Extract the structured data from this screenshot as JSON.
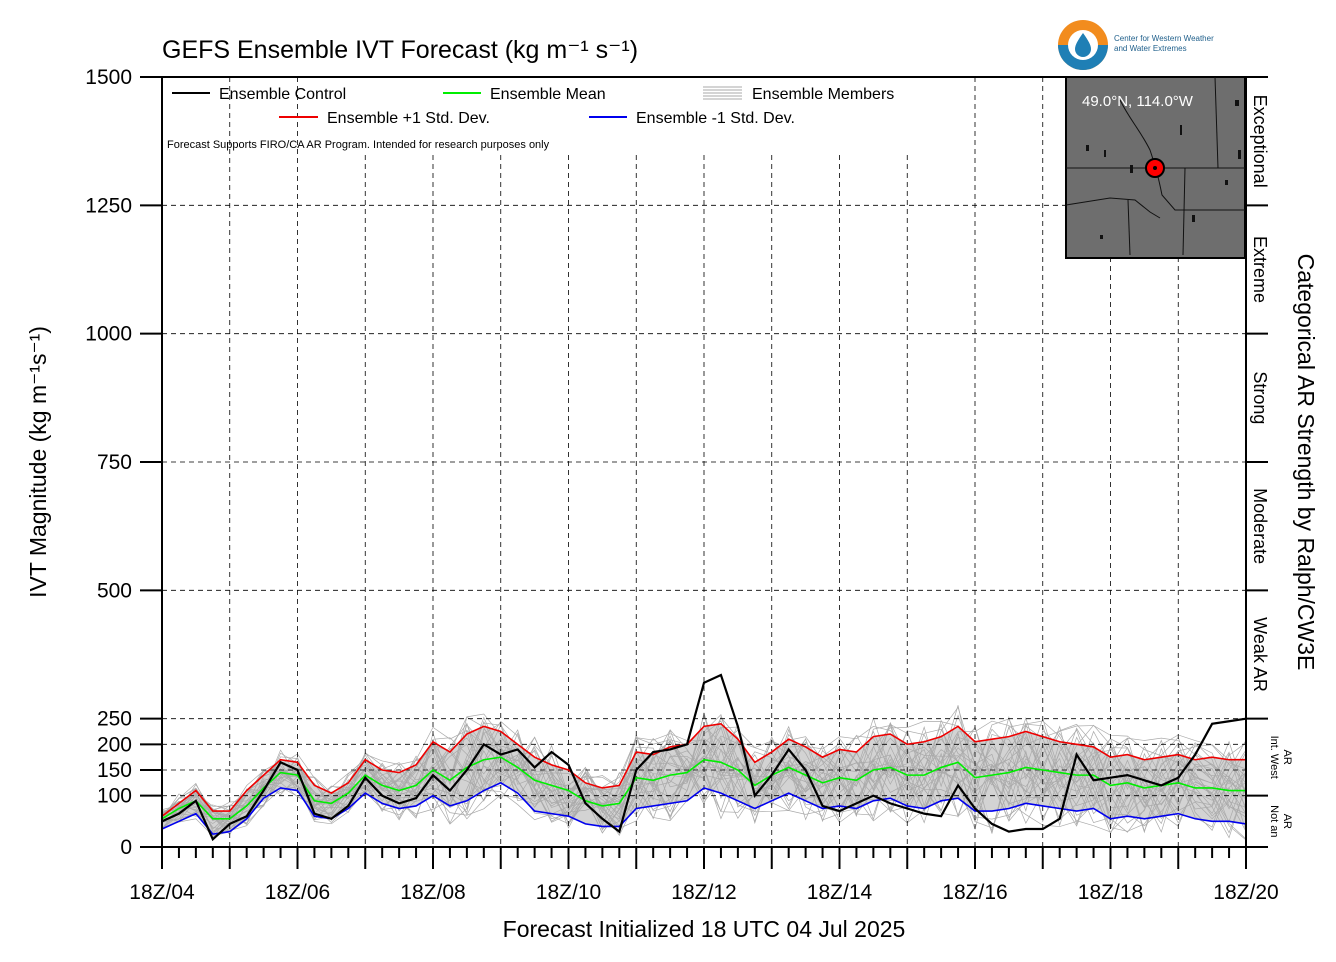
{
  "chart_data": {
    "type": "line",
    "title": "GEFS Ensemble IVT Forecast (kg m⁻¹ s⁻¹)",
    "xlabel": "Forecast Initialized 18 UTC 04 Jul 2025",
    "ylabel": "IVT Magnitude (kg m⁻¹s⁻¹)",
    "right_axis_label": "Categorical AR Strength by Ralph/CW3E",
    "ylim": [
      0,
      1500
    ],
    "xlim_hours": [
      0,
      384
    ],
    "x_ticks": [
      "18Z/04",
      "18Z/06",
      "18Z/08",
      "18Z/10",
      "18Z/12",
      "18Z/14",
      "18Z/16",
      "18Z/18",
      "18Z/20"
    ],
    "y_ticks": [
      0,
      100,
      150,
      200,
      250,
      500,
      750,
      1000,
      1250,
      1500
    ],
    "categories": [
      {
        "label": "Not an AR",
        "range": [
          0,
          100
        ]
      },
      {
        "label": "Int. West AR",
        "range": [
          100,
          250
        ]
      },
      {
        "label": "Weak AR",
        "range": [
          250,
          500
        ]
      },
      {
        "label": "Moderate",
        "range": [
          500,
          750
        ]
      },
      {
        "label": "Strong",
        "range": [
          750,
          1000
        ]
      },
      {
        "label": "Extreme",
        "range": [
          1000,
          1250
        ]
      },
      {
        "label": "Exceptional",
        "range": [
          1250,
          1500
        ]
      }
    ],
    "legend": {
      "control": "Ensemble Control",
      "mean": "Ensemble Mean",
      "members": "Ensemble Members",
      "plus_sd": "Ensemble +1 Std. Dev.",
      "minus_sd": "Ensemble -1 Std. Dev."
    },
    "note": "Forecast Supports FIRO/CA AR Program. Intended for research purposes only",
    "location": "49.0°N, 114.0°W",
    "logo_text": [
      "Center for Western Weather",
      "and Water Extremes"
    ],
    "colors": {
      "control": "#000000",
      "mean": "#00ee00",
      "plus_sd": "#ee0000",
      "minus_sd": "#0000ee",
      "members": "#aaaaaa",
      "band": "#d3d3d3",
      "map_bg": "#6e6e6e"
    },
    "series": [
      {
        "name": "Ensemble Control",
        "x": [
          0,
          6,
          12,
          18,
          24,
          30,
          36,
          42,
          48,
          54,
          60,
          66,
          72,
          78,
          84,
          90,
          96,
          102,
          108,
          114,
          120,
          126,
          132,
          138,
          144,
          150,
          156,
          162,
          168,
          174,
          180,
          186,
          192,
          198,
          204,
          210,
          216,
          222,
          228,
          234,
          240,
          246,
          252,
          258,
          264,
          270,
          276,
          282,
          288,
          294,
          300,
          306,
          312,
          318,
          324,
          330,
          336,
          342,
          348,
          354,
          360,
          366,
          372,
          378,
          384
        ],
        "values": [
          50,
          65,
          90,
          15,
          45,
          60,
          110,
          165,
          150,
          65,
          55,
          80,
          135,
          100,
          85,
          95,
          140,
          110,
          150,
          200,
          180,
          190,
          155,
          185,
          160,
          85,
          55,
          30,
          150,
          185,
          190,
          200,
          320,
          335,
          235,
          100,
          140,
          190,
          150,
          80,
          70,
          85,
          100,
          85,
          75,
          65,
          60,
          120,
          75,
          45,
          30,
          35,
          35,
          55,
          180,
          130,
          135,
          140,
          130,
          120,
          135,
          180,
          240,
          245,
          250
        ],
        "_note_unused": ""
      },
      {
        "name": "Ensemble Mean",
        "x": [
          0,
          6,
          12,
          18,
          24,
          30,
          36,
          42,
          48,
          54,
          60,
          66,
          72,
          78,
          84,
          90,
          96,
          102,
          108,
          114,
          120,
          126,
          132,
          138,
          144,
          150,
          156,
          162,
          168,
          174,
          180,
          186,
          192,
          198,
          204,
          210,
          216,
          222,
          228,
          234,
          240,
          246,
          252,
          258,
          264,
          270,
          276,
          282,
          288,
          294,
          300,
          306,
          312,
          318,
          324,
          330,
          336,
          342,
          348,
          354,
          360,
          366,
          372,
          378,
          384
        ],
        "values": [
          55,
          75,
          90,
          55,
          55,
          80,
          115,
          145,
          140,
          90,
          85,
          105,
          140,
          120,
          110,
          120,
          150,
          130,
          155,
          170,
          175,
          155,
          130,
          120,
          110,
          90,
          80,
          85,
          135,
          130,
          140,
          145,
          170,
          165,
          150,
          120,
          140,
          155,
          140,
          125,
          135,
          130,
          150,
          155,
          140,
          140,
          155,
          165,
          135,
          140,
          145,
          155,
          150,
          145,
          140,
          140,
          120,
          125,
          115,
          120,
          125,
          115,
          115,
          110,
          110
        ]
      },
      {
        "name": "Ensemble +1 Std. Dev.",
        "x": [
          0,
          6,
          12,
          18,
          24,
          30,
          36,
          42,
          48,
          54,
          60,
          66,
          72,
          78,
          84,
          90,
          96,
          102,
          108,
          114,
          120,
          126,
          132,
          138,
          144,
          150,
          156,
          162,
          168,
          174,
          180,
          186,
          192,
          198,
          204,
          210,
          216,
          222,
          228,
          234,
          240,
          246,
          252,
          258,
          264,
          270,
          276,
          282,
          288,
          294,
          300,
          306,
          312,
          318,
          324,
          330,
          336,
          342,
          348,
          354,
          360,
          366,
          372,
          378,
          384
        ],
        "values": [
          60,
          85,
          110,
          70,
          70,
          110,
          140,
          170,
          165,
          120,
          105,
          125,
          170,
          150,
          145,
          160,
          205,
          185,
          220,
          235,
          225,
          200,
          175,
          160,
          150,
          125,
          115,
          120,
          185,
          180,
          195,
          200,
          235,
          240,
          210,
          165,
          185,
          210,
          195,
          175,
          190,
          185,
          215,
          220,
          200,
          205,
          215,
          235,
          205,
          210,
          215,
          225,
          215,
          205,
          200,
          195,
          175,
          180,
          170,
          175,
          180,
          170,
          175,
          170,
          170
        ]
      },
      {
        "name": "Ensemble -1 Std. Dev.",
        "x": [
          0,
          6,
          12,
          18,
          24,
          30,
          36,
          42,
          48,
          54,
          60,
          66,
          72,
          78,
          84,
          90,
          96,
          102,
          108,
          114,
          120,
          126,
          132,
          138,
          144,
          150,
          156,
          162,
          168,
          174,
          180,
          186,
          192,
          198,
          204,
          210,
          216,
          222,
          228,
          234,
          240,
          246,
          252,
          258,
          264,
          270,
          276,
          282,
          288,
          294,
          300,
          306,
          312,
          318,
          324,
          330,
          336,
          342,
          348,
          354,
          360,
          366,
          372,
          378,
          384
        ],
        "values": [
          35,
          50,
          65,
          25,
          30,
          55,
          95,
          115,
          110,
          60,
          55,
          75,
          105,
          85,
          75,
          80,
          100,
          80,
          90,
          110,
          125,
          105,
          70,
          65,
          60,
          45,
          40,
          40,
          75,
          80,
          85,
          90,
          115,
          105,
          90,
          75,
          90,
          105,
          90,
          75,
          80,
          75,
          90,
          95,
          80,
          75,
          90,
          95,
          70,
          70,
          75,
          85,
          80,
          75,
          70,
          75,
          55,
          60,
          55,
          60,
          65,
          55,
          50,
          50,
          45
        ]
      }
    ]
  }
}
